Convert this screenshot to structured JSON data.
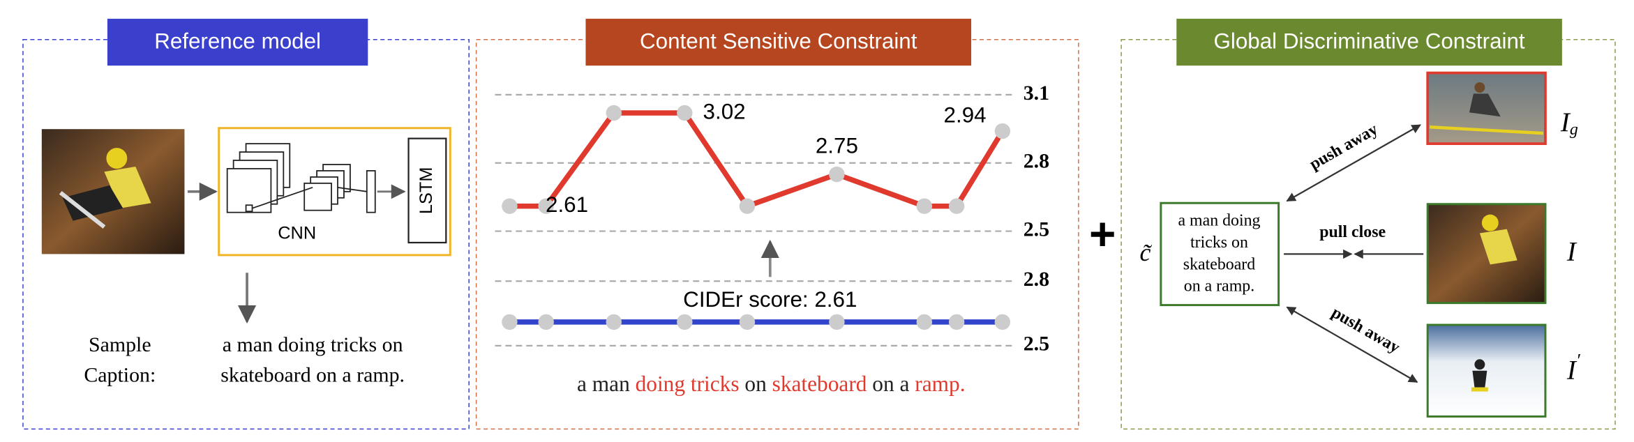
{
  "reference": {
    "title": "Reference model",
    "cnn_label": "CNN",
    "lstm_label": "LSTM",
    "sample_label": [
      "Sample",
      "Caption:"
    ],
    "caption": [
      "a man doing tricks on",
      "skateboard on a ramp."
    ]
  },
  "content": {
    "title": "Content Sensitive Constraint",
    "caption": [
      {
        "text": "a man ",
        "color": "#222222"
      },
      {
        "text": "doing tricks",
        "color": "#e03a2f"
      },
      {
        "text": " on ",
        "color": "#222222"
      },
      {
        "text": "skateboard",
        "color": "#e03a2f"
      },
      {
        "text": " on a ",
        "color": "#222222"
      },
      {
        "text": "ramp.",
        "color": "#e03a2f"
      }
    ]
  },
  "chart_data": [
    {
      "type": "line",
      "color": "#e03a2f",
      "values": [
        2.61,
        2.61,
        3.02,
        3.02,
        2.61,
        2.75,
        2.61,
        2.61,
        2.94
      ],
      "ylim": [
        2.5,
        3.1
      ],
      "yticks": [
        2.5,
        2.8,
        3.1
      ],
      "grid": true
    },
    {
      "type": "line",
      "color": "#3344cc",
      "annotation": "CIDEr score: 2.61",
      "values": [
        2.61,
        2.61,
        2.61,
        2.61,
        2.61,
        2.61,
        2.61,
        2.61,
        2.61
      ],
      "ylim": [
        2.5,
        2.8
      ],
      "yticks": [
        2.5,
        2.8
      ],
      "grid": true
    }
  ],
  "operator": "+",
  "global": {
    "title": "Global Discriminative Constraint",
    "caption_symbol": "c̃",
    "caption": [
      "a man doing",
      "tricks on",
      "skateboard",
      "on a ramp."
    ],
    "push_top": "push away",
    "pull": "pull close",
    "push_bottom": "push away",
    "image_labels": [
      {
        "base": "I",
        "mark": "g"
      },
      {
        "base": "I"
      },
      {
        "base": "I",
        "mark": "′"
      }
    ]
  }
}
